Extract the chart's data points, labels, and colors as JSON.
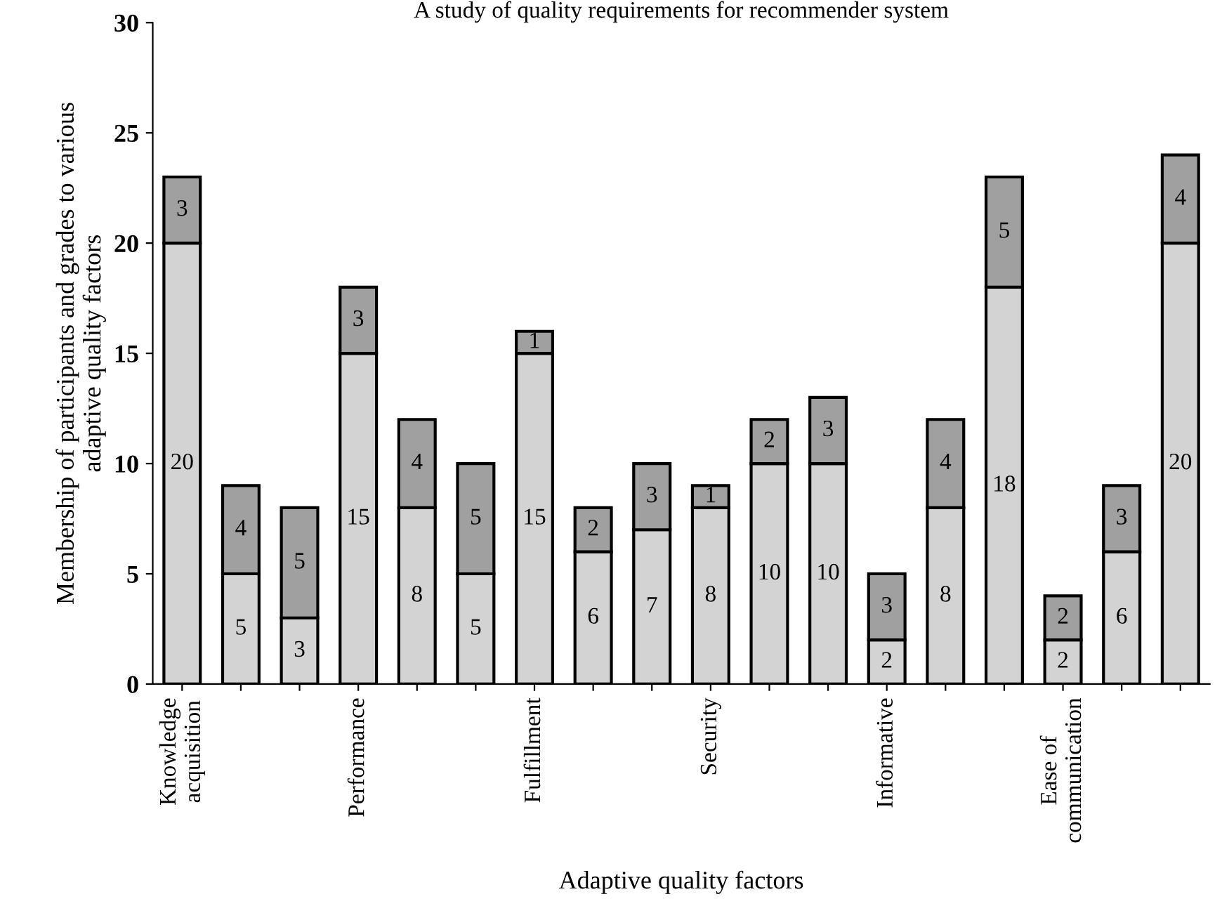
{
  "chart_data": {
    "type": "bar",
    "title": "A study of quality requirements for recommender system",
    "xlabel": "Adaptive quality factors",
    "ylabel": "Membership of participants and grades to various\nadaptive quality factors",
    "categories": [
      "Knowledge\nacquisition",
      null,
      null,
      "Performance",
      null,
      null,
      "Fulfillment",
      null,
      null,
      "Security",
      null,
      null,
      "Informative",
      null,
      null,
      "Ease of\ncommunication",
      null,
      null
    ],
    "stacked": true,
    "data_labels": true,
    "grid": false,
    "legend": false,
    "series": [
      {
        "color": "#d3d3d3",
        "values": [
          20,
          5,
          3,
          15,
          8,
          5,
          15,
          6,
          7,
          8,
          10,
          10,
          2,
          8,
          18,
          2,
          6,
          20
        ]
      },
      {
        "color": "#a0a0a0",
        "values": [
          3,
          4,
          5,
          3,
          4,
          5,
          1,
          2,
          3,
          1,
          2,
          3,
          3,
          4,
          5,
          2,
          3,
          4
        ]
      }
    ],
    "ylim": [
      0,
      30
    ],
    "yticks": [
      0,
      5,
      10,
      15,
      20,
      25,
      30
    ]
  }
}
